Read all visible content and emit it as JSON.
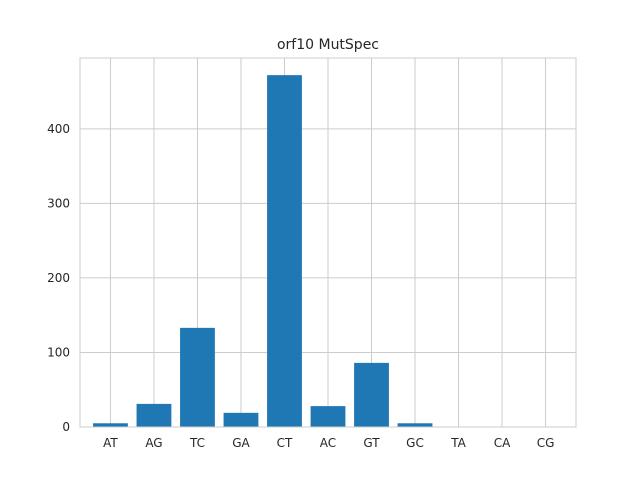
{
  "chart_data": {
    "type": "bar",
    "title": "orf10 MutSpec",
    "xlabel": "",
    "ylabel": "",
    "categories": [
      "AT",
      "AG",
      "TC",
      "GA",
      "CT",
      "AC",
      "GT",
      "GC",
      "TA",
      "CA",
      "CG"
    ],
    "values": [
      5,
      31,
      133,
      19,
      472,
      28,
      86,
      5,
      0,
      0,
      0
    ],
    "ylim": [
      0,
      495
    ],
    "yticks": [
      0,
      100,
      200,
      300,
      400
    ],
    "grid": true,
    "legend": "none",
    "colors": {
      "bar": "#1f77b4",
      "grid": "#cccccc",
      "background": "#ffffff",
      "text": "#262626"
    }
  }
}
